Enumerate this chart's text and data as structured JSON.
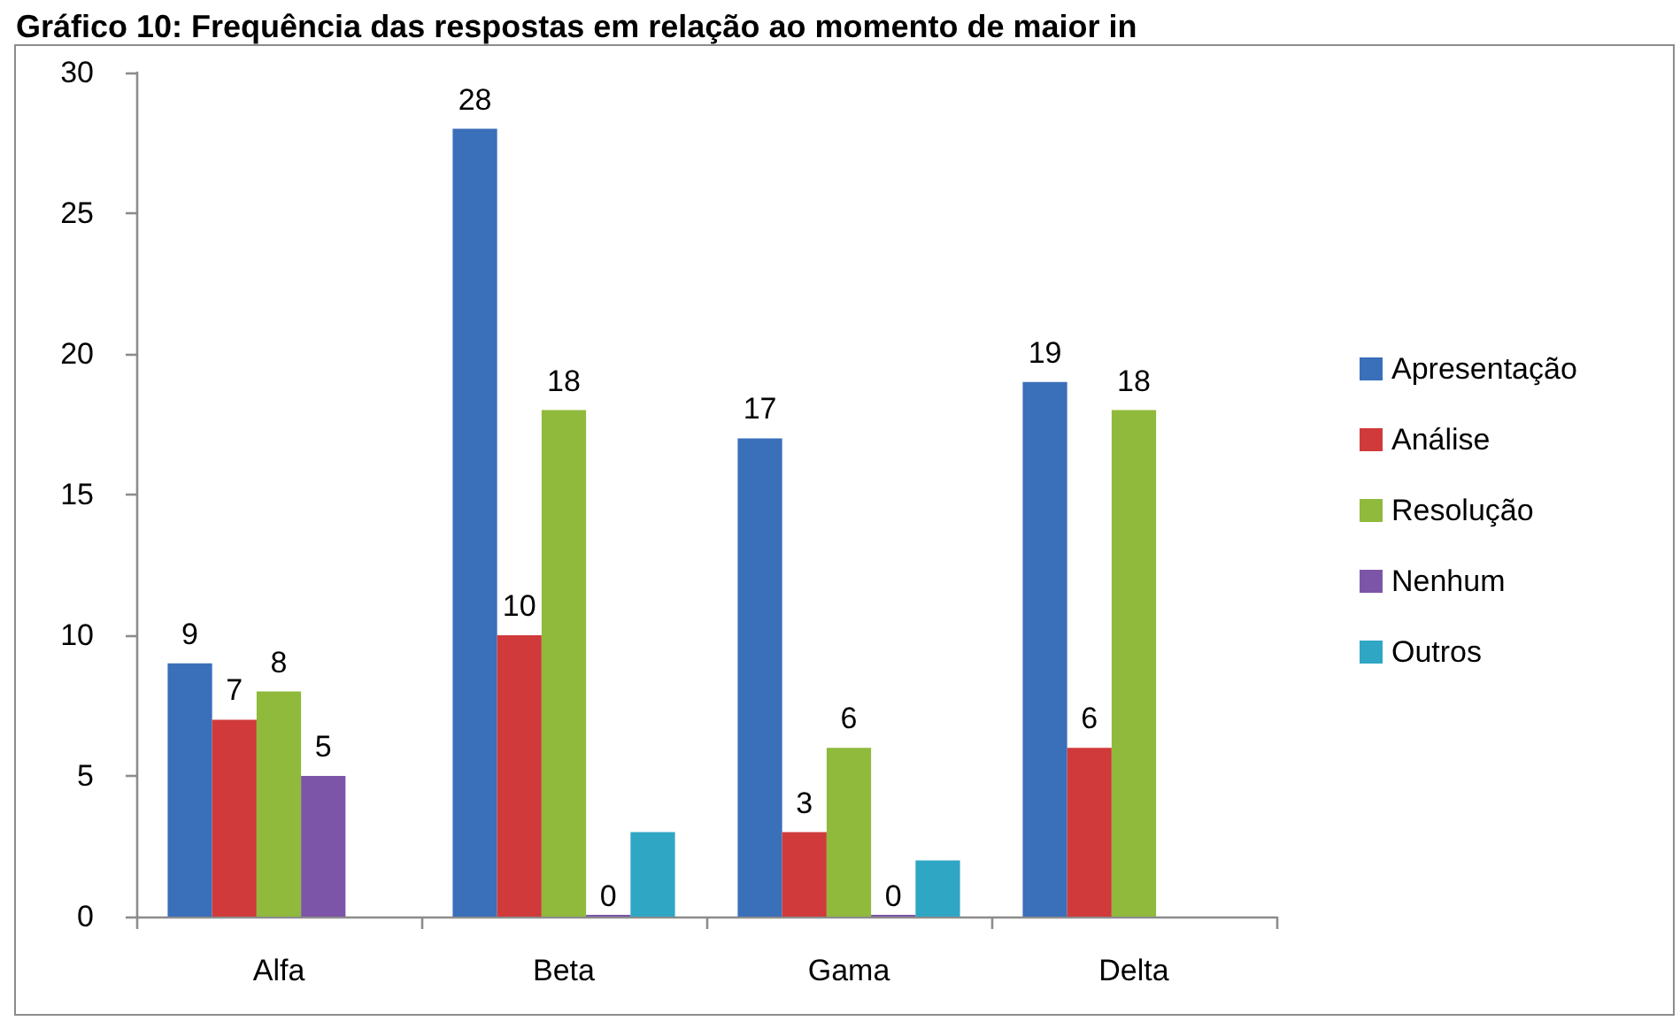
{
  "chart_data": {
    "type": "bar",
    "title": "Gráfico 10: Frequência das respostas em relação ao momento de maior in",
    "categories": [
      "Alfa",
      "Beta",
      "Gama",
      "Delta"
    ],
    "series": [
      {
        "name": "Apresentação",
        "color": "#3a6fba",
        "values": [
          9,
          28,
          17,
          19
        ],
        "value_labels": [
          "9",
          "28",
          "17",
          "19"
        ]
      },
      {
        "name": "Análise",
        "color": "#d03a3a",
        "values": [
          7,
          10,
          3,
          6
        ],
        "value_labels": [
          "7",
          "10",
          "3",
          "6"
        ]
      },
      {
        "name": "Resolução",
        "color": "#8fba3c",
        "values": [
          8,
          18,
          6,
          18
        ],
        "value_labels": [
          "8",
          "18",
          "6",
          "18"
        ]
      },
      {
        "name": "Nenhum",
        "color": "#7d55a8",
        "values": [
          5,
          0,
          0,
          null
        ],
        "value_labels": [
          "5",
          "0",
          "0",
          null
        ]
      },
      {
        "name": "Outros",
        "color": "#2fa6c4",
        "values": [
          null,
          3,
          2,
          null
        ]
      }
    ],
    "ylim": [
      0,
      30
    ],
    "yticks": [
      0,
      5,
      10,
      15,
      20,
      25,
      30
    ],
    "grid": false,
    "legend": "right"
  }
}
